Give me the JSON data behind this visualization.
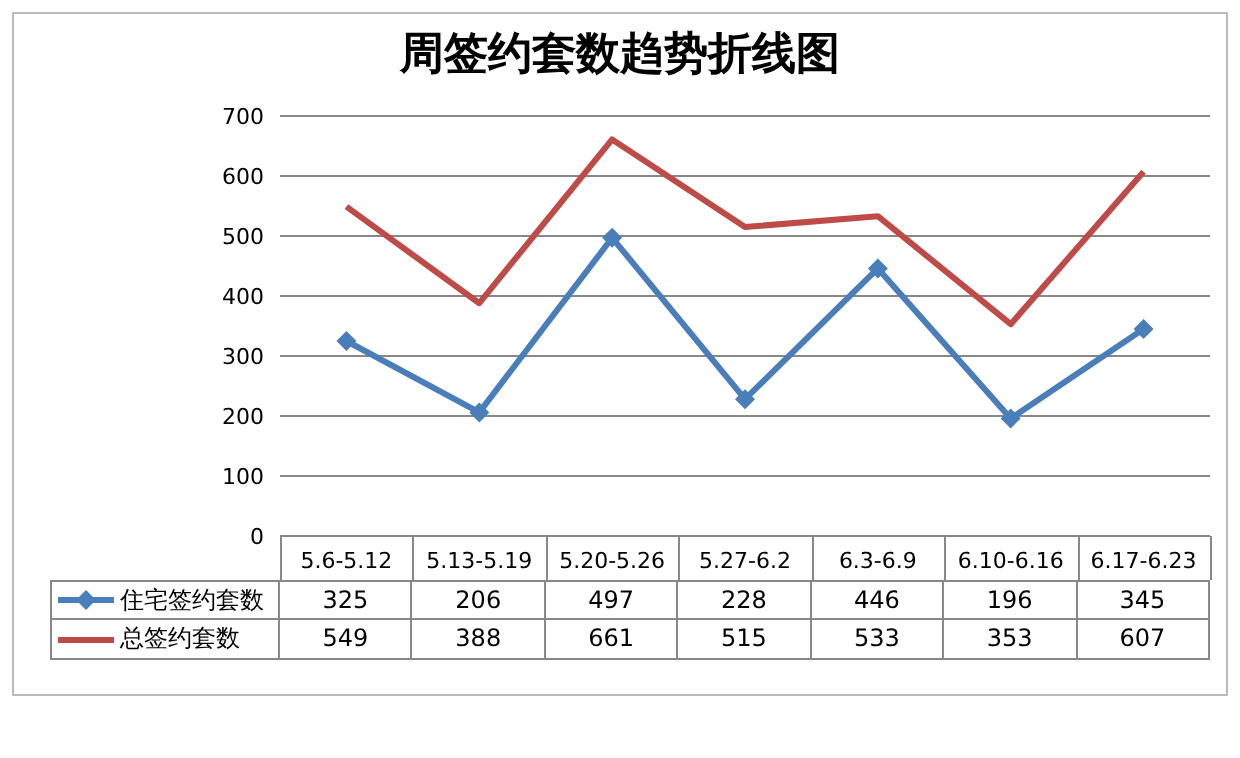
{
  "chart_data": {
    "type": "line",
    "title": "周签约套数趋势折线图",
    "categories": [
      "5.6-5.12",
      "5.13-5.19",
      "5.20-5.26",
      "5.27-6.2",
      "6.3-6.9",
      "6.10-6.16",
      "6.17-6.23"
    ],
    "series": [
      {
        "name": "住宅签约套数",
        "color": "#4a7ebb",
        "marker": "diamond",
        "values": [
          325,
          206,
          497,
          228,
          446,
          196,
          345
        ]
      },
      {
        "name": "总签约套数",
        "color": "#be4b48",
        "marker": "none",
        "values": [
          549,
          388,
          661,
          515,
          533,
          353,
          607
        ]
      }
    ],
    "ylim": [
      0,
      700
    ],
    "yticks": [
      0,
      100,
      200,
      300,
      400,
      500,
      600,
      700
    ],
    "grid": "y",
    "legend": "bottom",
    "data_labels": true
  }
}
